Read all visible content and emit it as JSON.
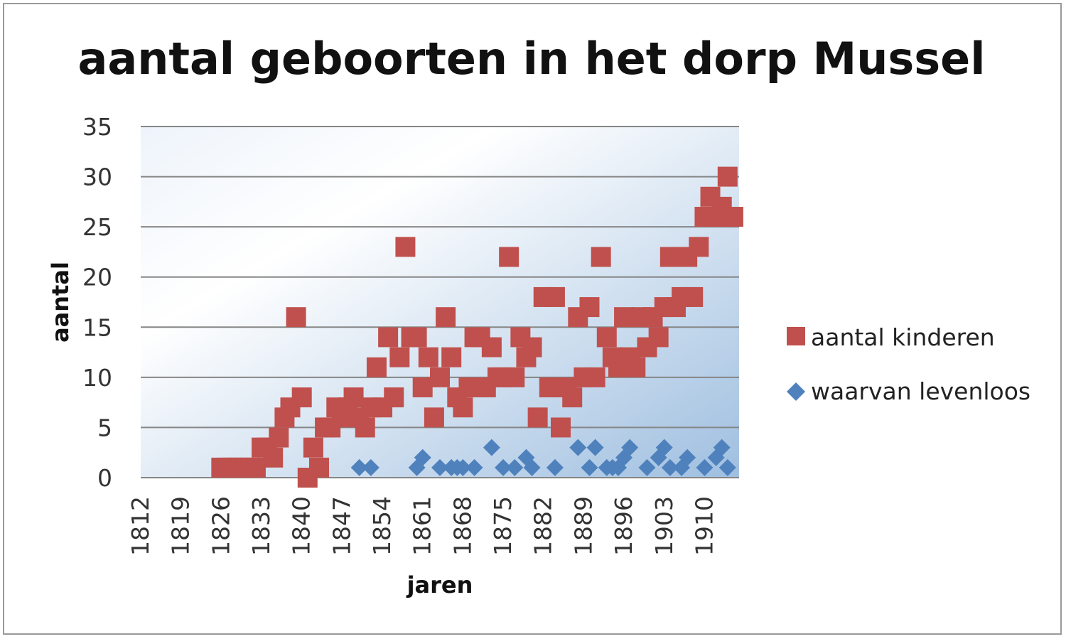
{
  "chart_data": {
    "type": "scatter",
    "title": "aantal geboorten in het dorp Mussel",
    "xlabel": "jaren",
    "ylabel": "aantal",
    "xlim": [
      1812,
      1916
    ],
    "ylim": [
      0,
      35
    ],
    "yticks": [
      "0",
      "5",
      "10",
      "15",
      "20",
      "25",
      "30",
      "35"
    ],
    "xticks": [
      "1812",
      "1819",
      "1826",
      "1833",
      "1840",
      "1847",
      "1854",
      "1861",
      "1868",
      "1875",
      "1882",
      "1889",
      "1896",
      "1903",
      "1910"
    ],
    "grid": true,
    "legend_position": "right",
    "series": [
      {
        "name": "aantal kinderen",
        "marker": "square",
        "color": "#c0504d",
        "x": [
          1826,
          1827,
          1828,
          1829,
          1830,
          1831,
          1832,
          1833,
          1834,
          1835,
          1836,
          1837,
          1838,
          1839,
          1840,
          1841,
          1842,
          1843,
          1844,
          1845,
          1846,
          1847,
          1848,
          1849,
          1850,
          1851,
          1852,
          1853,
          1854,
          1855,
          1856,
          1857,
          1858,
          1859,
          1860,
          1861,
          1862,
          1863,
          1864,
          1865,
          1866,
          1867,
          1868,
          1869,
          1870,
          1871,
          1872,
          1873,
          1874,
          1875,
          1876,
          1877,
          1878,
          1879,
          1880,
          1881,
          1882,
          1883,
          1884,
          1885,
          1886,
          1887,
          1888,
          1889,
          1890,
          1891,
          1892,
          1893,
          1894,
          1895,
          1896,
          1897,
          1898,
          1899,
          1900,
          1901,
          1902,
          1903,
          1904,
          1905,
          1906,
          1907,
          1908,
          1909,
          1910,
          1911,
          1912,
          1913,
          1914,
          1915
        ],
        "y": [
          1,
          1,
          1,
          1,
          1,
          1,
          1,
          3,
          3,
          2,
          4,
          6,
          7,
          16,
          8,
          0,
          3,
          1,
          5,
          5,
          7,
          6,
          7,
          8,
          6,
          5,
          7,
          11,
          7,
          14,
          8,
          12,
          23,
          14,
          14,
          9,
          12,
          6,
          10,
          16,
          12,
          8,
          7,
          9,
          14,
          14,
          9,
          13,
          10,
          10,
          22,
          10,
          14,
          12,
          13,
          6,
          18,
          9,
          18,
          5,
          9,
          8,
          16,
          10,
          17,
          10,
          22,
          14,
          12,
          11,
          16,
          12,
          11,
          16,
          13,
          16,
          14,
          17,
          22,
          17,
          18,
          22,
          18,
          23,
          26,
          28,
          26,
          27,
          30,
          26
        ]
      },
      {
        "name": "waarvan levenloos",
        "marker": "diamond",
        "color": "#4f81bd",
        "x": [
          1850,
          1852,
          1860,
          1861,
          1864,
          1866,
          1867,
          1868,
          1870,
          1873,
          1875,
          1877,
          1879,
          1880,
          1884,
          1888,
          1890,
          1891,
          1893,
          1894,
          1895,
          1896,
          1897,
          1900,
          1902,
          1903,
          1904,
          1906,
          1907,
          1910,
          1912,
          1913,
          1914
        ],
        "y": [
          1,
          1,
          1,
          2,
          1,
          1,
          1,
          1,
          1,
          3,
          1,
          1,
          2,
          1,
          1,
          3,
          1,
          3,
          1,
          1,
          1,
          2,
          3,
          1,
          2,
          3,
          1,
          1,
          2,
          1,
          2,
          3,
          1
        ]
      }
    ]
  }
}
